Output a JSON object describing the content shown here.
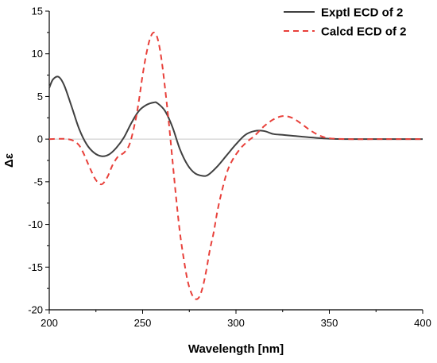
{
  "chart_data": {
    "type": "line",
    "title": "",
    "xlabel": "Wavelength [nm]",
    "ylabel": "Δε",
    "xlim": [
      200,
      400
    ],
    "ylim": [
      -20,
      15
    ],
    "x_ticks": [
      200,
      250,
      300,
      350,
      400
    ],
    "y_ticks": [
      15,
      10,
      5,
      0,
      -5,
      -10,
      -15,
      -20
    ],
    "zero_line": true,
    "grid": false,
    "legend_position": "top-right",
    "series": [
      {
        "name": "Exptl ECD of 2",
        "color": "#404040",
        "dash": "solid",
        "x": [
          200,
          202,
          205,
          208,
          212,
          216,
          220,
          224,
          228,
          232,
          236,
          240,
          244,
          248,
          252,
          256,
          258,
          262,
          266,
          270,
          274,
          278,
          282,
          285,
          290,
          295,
          300,
          305,
          310,
          315,
          320,
          325,
          330,
          340,
          350,
          360,
          380,
          400
        ],
        "y": [
          6.0,
          7.0,
          7.3,
          6.3,
          3.8,
          1.2,
          -0.6,
          -1.6,
          -2.0,
          -1.8,
          -1.0,
          0.2,
          1.9,
          3.3,
          4.0,
          4.3,
          4.2,
          3.3,
          1.4,
          -1.2,
          -3.0,
          -4.0,
          -4.3,
          -4.2,
          -3.2,
          -1.9,
          -0.6,
          0.5,
          0.95,
          0.95,
          0.6,
          0.5,
          0.4,
          0.2,
          0.05,
          0.0,
          0.0,
          0.0
        ]
      },
      {
        "name": "Calcd ECD of 2",
        "color": "#e8403a",
        "dash": "dashed",
        "x": [
          200,
          210,
          215,
          218,
          222,
          225,
          228,
          231,
          234,
          237,
          240,
          243,
          246,
          248,
          250,
          252,
          254,
          256,
          258,
          260,
          262,
          264,
          266,
          268,
          270,
          272,
          274,
          276,
          278,
          280,
          282,
          284,
          286,
          288,
          290,
          292,
          295,
          298,
          302,
          306,
          310,
          315,
          320,
          325,
          330,
          335,
          340,
          345,
          350,
          360,
          380,
          400
        ],
        "y": [
          0.0,
          0.0,
          -0.5,
          -1.5,
          -3.5,
          -4.8,
          -5.3,
          -4.5,
          -3.0,
          -2.0,
          -1.6,
          -0.6,
          2.0,
          4.5,
          7.5,
          10.0,
          11.8,
          12.5,
          11.8,
          9.5,
          6.0,
          2.0,
          -2.5,
          -7.0,
          -11.0,
          -14.0,
          -16.5,
          -18.0,
          -18.7,
          -18.6,
          -17.5,
          -15.5,
          -13.0,
          -11.0,
          -8.5,
          -6.5,
          -4.0,
          -2.5,
          -1.2,
          -0.3,
          0.4,
          1.5,
          2.3,
          2.7,
          2.5,
          1.8,
          1.0,
          0.4,
          0.1,
          0.0,
          0.0,
          0.0
        ]
      }
    ]
  }
}
